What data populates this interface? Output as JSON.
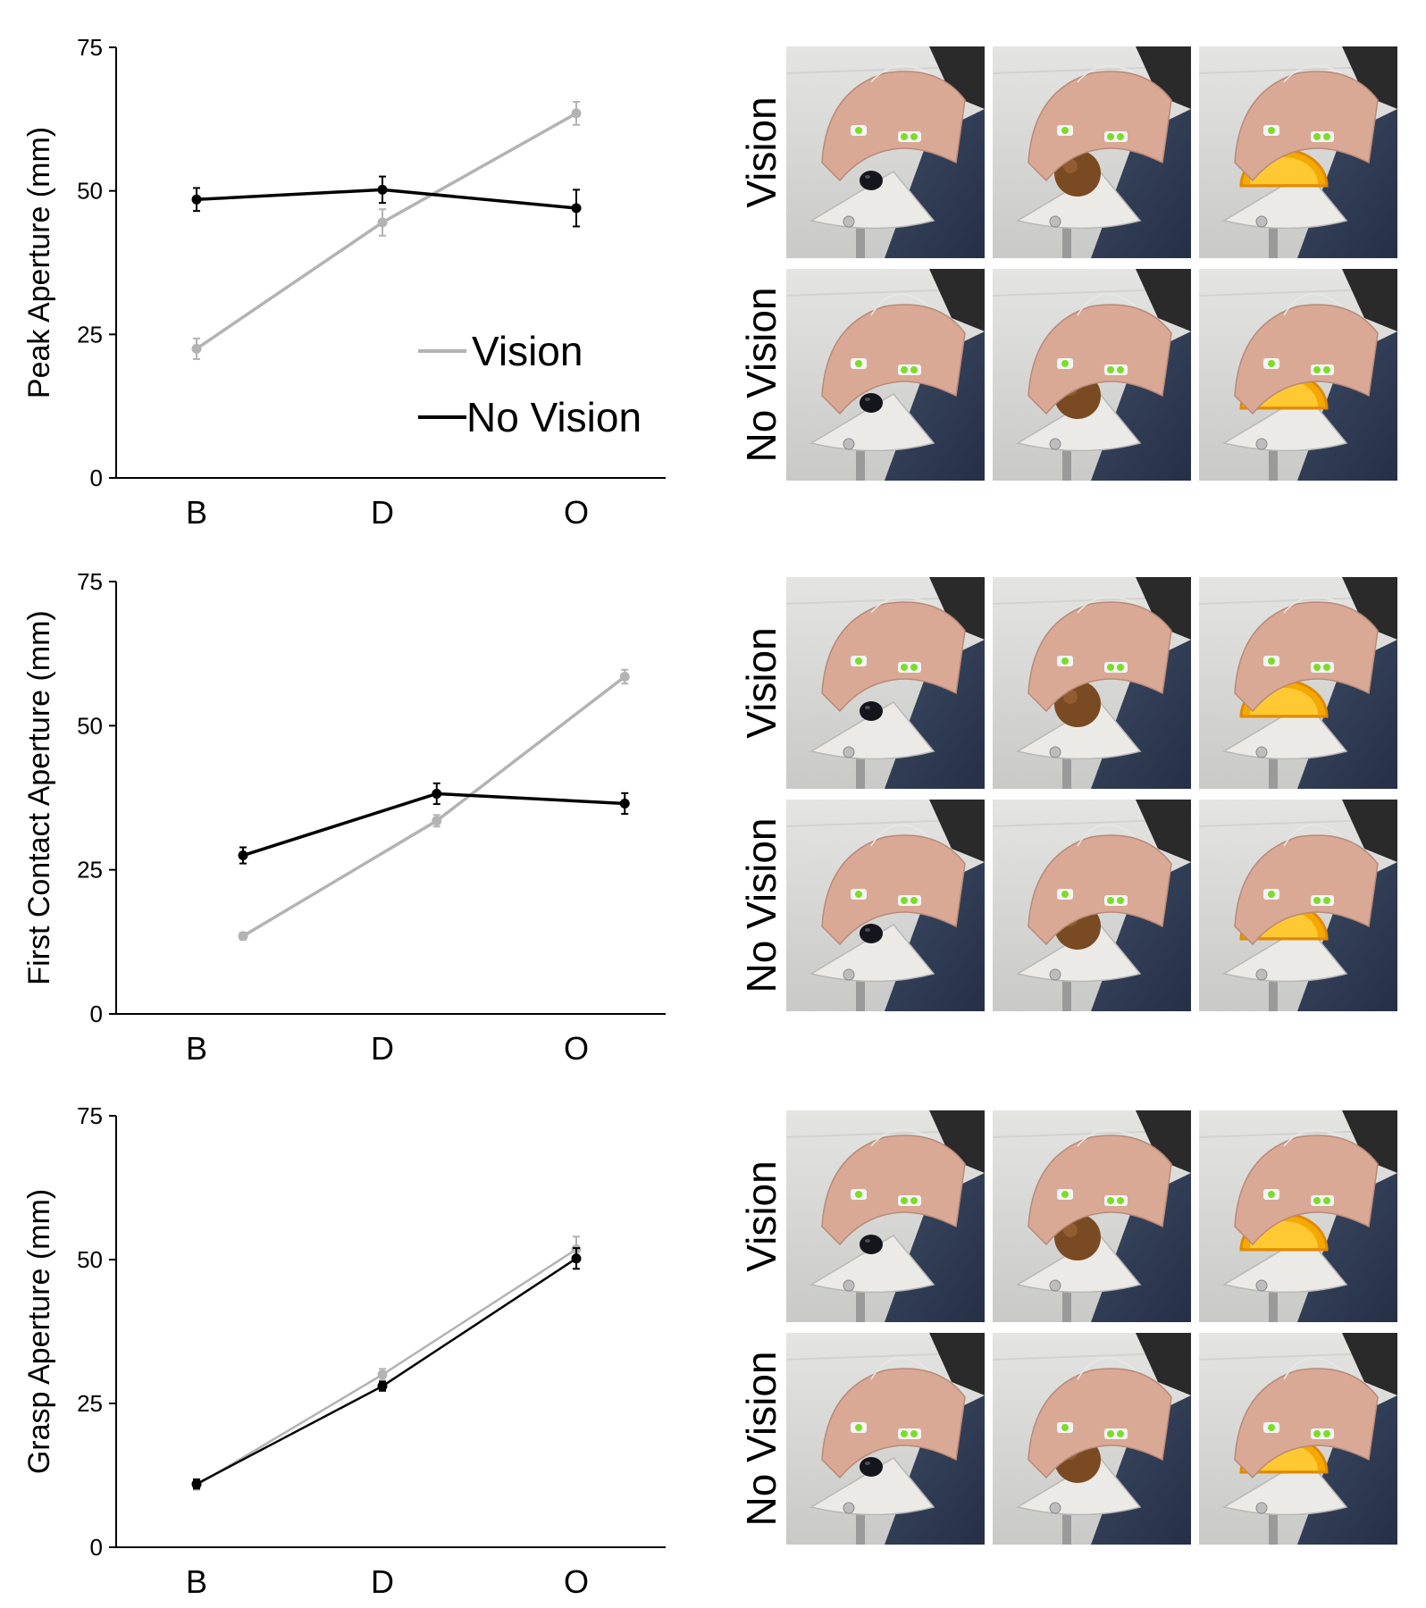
{
  "chart_data": [
    {
      "type": "line",
      "id": "peak",
      "ylabel": "Peak Aperture (mm)",
      "categories": [
        "B",
        "D",
        "O"
      ],
      "ylim": [
        0,
        75
      ],
      "yticks": [
        0,
        25,
        50,
        75
      ],
      "legend": [
        "Vision",
        "No Vision"
      ],
      "series": [
        {
          "name": "Vision",
          "color": "#b3b3b3",
          "x": [
            0,
            1,
            2
          ],
          "values": [
            22.5,
            44.5,
            63.5
          ],
          "errors": [
            1.8,
            2.3,
            2.0
          ]
        },
        {
          "name": "No Vision",
          "color": "#000000",
          "x": [
            0,
            1,
            2
          ],
          "values": [
            48.5,
            50.2,
            47.0
          ],
          "errors": [
            2.0,
            2.3,
            3.2
          ]
        }
      ]
    },
    {
      "type": "line",
      "id": "first-contact",
      "ylabel": "First Contact Aperture (mm)",
      "categories": [
        "B",
        "D",
        "O"
      ],
      "ylim": [
        0,
        75
      ],
      "yticks": [
        0,
        25,
        50,
        75
      ],
      "series": [
        {
          "name": "Vision",
          "color": "#b3b3b3",
          "x": [
            0.25,
            1.28,
            2.25
          ],
          "values": [
            13.5,
            33.5,
            58.5
          ],
          "errors": [
            0.6,
            1.0,
            1.2
          ]
        },
        {
          "name": "No Vision",
          "color": "#000000",
          "x": [
            0.25,
            1.28,
            2.25
          ],
          "values": [
            27.5,
            38.2,
            36.5
          ],
          "errors": [
            1.4,
            1.8,
            1.8
          ]
        }
      ]
    },
    {
      "type": "line",
      "id": "grasp",
      "ylabel": "Grasp Aperture (mm)",
      "categories": [
        "B",
        "D",
        "O"
      ],
      "ylim": [
        0,
        75
      ],
      "yticks": [
        0,
        25,
        50,
        75
      ],
      "series": [
        {
          "name": "Vision",
          "color": "#b3b3b3",
          "x": [
            0,
            1,
            2
          ],
          "values": [
            10.8,
            30.0,
            51.8
          ],
          "errors": [
            0.8,
            1.0,
            2.2
          ]
        },
        {
          "name": "No Vision",
          "color": "#000000",
          "x": [
            0,
            1,
            2
          ],
          "values": [
            11.0,
            28.0,
            50.2
          ],
          "errors": [
            0.8,
            0.8,
            1.8
          ]
        }
      ]
    }
  ],
  "photo_panels": [
    {
      "rows": [
        "Vision",
        "No Vision"
      ],
      "objects": [
        "blueberry",
        "donut hole",
        "orange slice"
      ]
    },
    {
      "rows": [
        "Vision",
        "No Vision"
      ],
      "objects": [
        "blueberry",
        "donut hole",
        "orange slice"
      ]
    },
    {
      "rows": [
        "Vision",
        "No Vision"
      ],
      "objects": [
        "blueberry",
        "donut hole",
        "orange slice"
      ]
    }
  ],
  "colors": {
    "vision": "#b3b3b3",
    "no_vision": "#000000",
    "orange": "#f5a800",
    "donut": "#7a4a22",
    "blueberry": "#15161c"
  }
}
